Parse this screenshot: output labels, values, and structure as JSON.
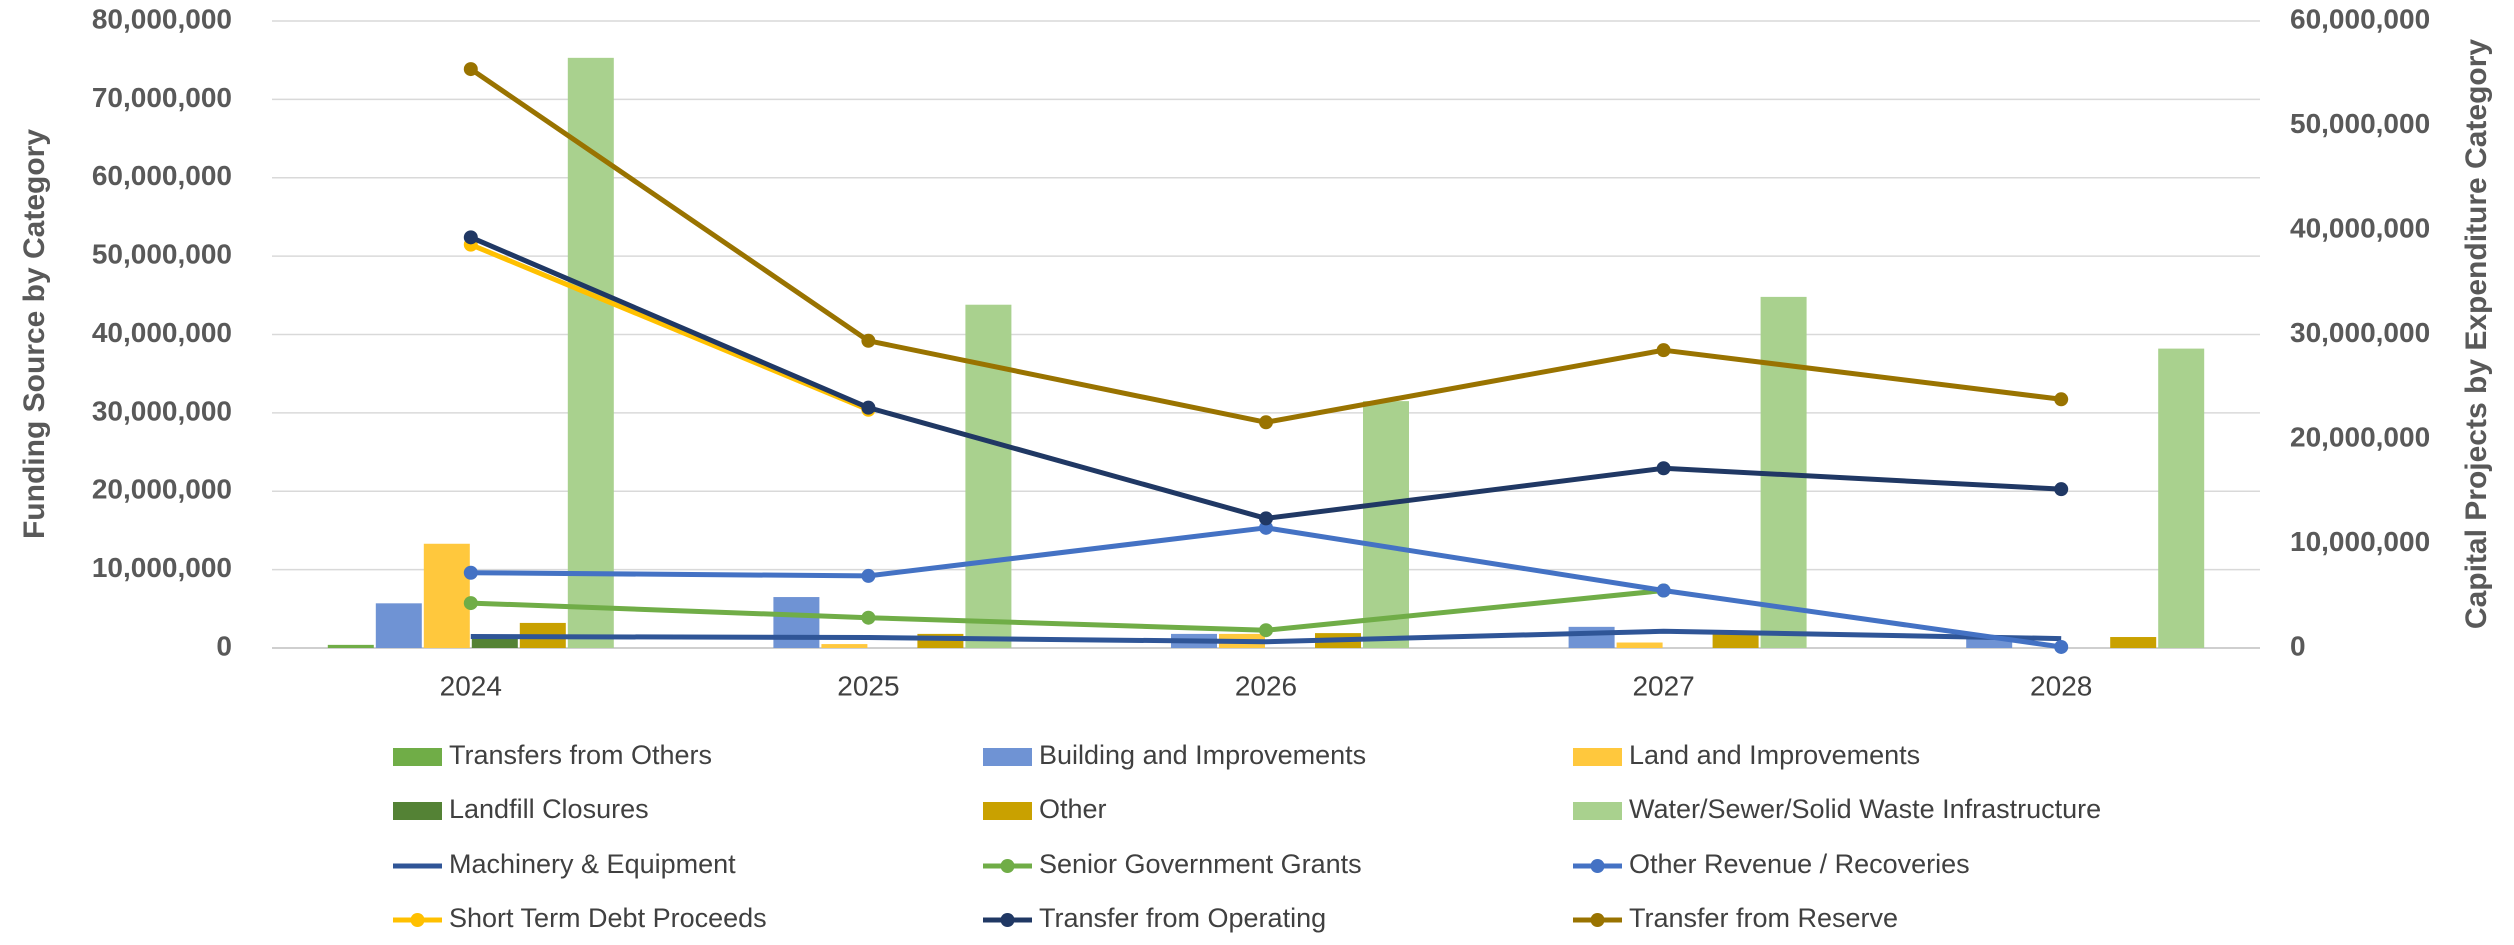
{
  "chart_data": {
    "type": "bar",
    "ylabel": "Funding Source by Category",
    "y2label": "Capital Projects by Expenditure Category",
    "categories": [
      "2024",
      "2025",
      "2026",
      "2027",
      "2028"
    ],
    "ylim": [
      0,
      80000000
    ],
    "yticks": [
      0,
      {
        "value": 10000000,
        "label": "10,000,000"
      },
      {
        "value": 20000000,
        "label": "20,000,000"
      },
      {
        "value": 30000000,
        "label": "30,000,000"
      },
      {
        "value": 40000000,
        "label": "40,000,000"
      },
      {
        "value": 50000000,
        "label": "50,000,000"
      },
      {
        "value": 60000000,
        "label": "60,000,000"
      },
      {
        "value": 70000000,
        "label": "70,000,000"
      },
      {
        "value": 80000000,
        "label": "80,000,000"
      }
    ],
    "y2lim": [
      0,
      60000000
    ],
    "y2ticks": [
      0,
      {
        "value": 10000000,
        "label": "10,000,000"
      },
      {
        "value": 20000000,
        "label": "20,000,000"
      },
      {
        "value": 30000000,
        "label": "30,000,000"
      },
      {
        "value": 40000000,
        "label": "40,000,000"
      },
      {
        "value": 50000000,
        "label": "50,000,000"
      },
      {
        "value": 60000000,
        "label": "60,000,000"
      }
    ],
    "grid": true,
    "legend": "bottom",
    "series": [
      {
        "name": "Transfers from Others",
        "type": "bar",
        "color": "#70AD47",
        "values": [
          400000,
          0,
          0,
          0,
          0
        ]
      },
      {
        "name": "Building and Improvements",
        "type": "bar",
        "color": "#6F93D4",
        "values": [
          5700000,
          6500000,
          1800000,
          2700000,
          1500000
        ]
      },
      {
        "name": "Land and Improvements",
        "type": "bar",
        "color": "#FFC83D",
        "values": [
          13300000,
          500000,
          1800000,
          700000,
          0
        ]
      },
      {
        "name": "Landfill Closures",
        "type": "bar",
        "color": "#548235",
        "values": [
          1500000,
          0,
          0,
          0,
          0
        ]
      },
      {
        "name": "Other",
        "type": "bar",
        "color": "#C9A100",
        "values": [
          3200000,
          1800000,
          1900000,
          1900000,
          1400000
        ]
      },
      {
        "name": "Water/Sewer/Solid Waste Infrastructure",
        "type": "bar",
        "color": "#A9D18E",
        "values": [
          75300000,
          43800000,
          31500000,
          44800000,
          38200000
        ]
      },
      {
        "name": "Machinery & Equipment",
        "type": "line",
        "axis": "y2",
        "markers": false,
        "color": "#2F5597",
        "values": [
          1100000,
          1000000,
          600000,
          1600000,
          900000
        ]
      },
      {
        "name": "Senior Government Grants",
        "type": "line",
        "axis": "y2",
        "markers": true,
        "color": "#70AD47",
        "values": [
          4300000,
          2900000,
          1700000,
          5500000,
          null
        ]
      },
      {
        "name": "Other Revenue / Recoveries",
        "type": "line",
        "axis": "y2",
        "markers": true,
        "color": "#4472C4",
        "values": [
          7200000,
          6900000,
          11500000,
          5500000,
          100000
        ]
      },
      {
        "name": "Short Term Debt Proceeds",
        "type": "line",
        "axis": "y2",
        "markers": true,
        "color": "#FFC000",
        "values": [
          38600000,
          22800000,
          null,
          null,
          null
        ]
      },
      {
        "name": "Transfer from Operating",
        "type": "line",
        "axis": "y2",
        "markers": true,
        "color": "#203864",
        "values": [
          39300000,
          23000000,
          12400000,
          17200000,
          15200000
        ]
      },
      {
        "name": "Transfer from Reserve",
        "type": "line",
        "axis": "y2",
        "markers": true,
        "color": "#997300",
        "values": [
          55400000,
          29400000,
          21600000,
          28500000,
          23800000
        ]
      }
    ]
  }
}
